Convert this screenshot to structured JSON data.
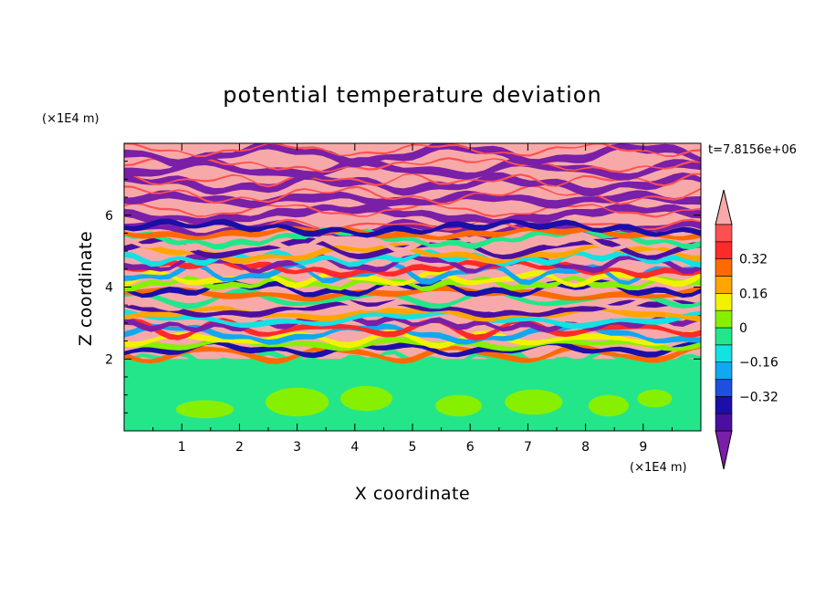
{
  "chart_data": {
    "type": "heatmap",
    "title": "potential temperature deviation",
    "xlabel": "X coordinate",
    "ylabel": "Z coordinate",
    "x_unit": "(×1E4 m)",
    "y_unit": "(×1E4 m)",
    "time_label": "t=7.8156e+06",
    "xlim": [
      0,
      10
    ],
    "ylim": [
      0,
      8
    ],
    "x_ticks": [
      "1",
      "2",
      "3",
      "4",
      "5",
      "6",
      "7",
      "8",
      "9"
    ],
    "y_ticks": [
      "2",
      "4",
      "6"
    ],
    "colorbar": {
      "levels": [
        -0.48,
        -0.4,
        -0.32,
        -0.24,
        -0.16,
        -0.08,
        0,
        0.08,
        0.16,
        0.24,
        0.32,
        0.4,
        0.48
      ],
      "colors": [
        "#7a1fa8",
        "#4b0fa0",
        "#1c0ea8",
        "#1d4fe0",
        "#10a8f0",
        "#12e2e2",
        "#23e68a",
        "#86f000",
        "#f2f200",
        "#ffa500",
        "#ff6a00",
        "#ff2a2a",
        "#ff5050",
        "#f7a9a9"
      ],
      "labels": [
        "0.32",
        "0.16",
        "0",
        "−0.16",
        "−0.32"
      ],
      "label_values": [
        0.32,
        0.16,
        0,
        -0.16,
        -0.32
      ],
      "extend": "both"
    },
    "field_regions": {
      "lower_layer": {
        "z_range": [
          0,
          2
        ],
        "dominant_values": [
          -0.05,
          0.05
        ]
      },
      "mixing_layer": {
        "z_range": [
          2,
          5.6
        ],
        "dominant_values": [
          -0.48,
          0.48
        ]
      },
      "upper_layer": {
        "z_range": [
          5.6,
          8
        ],
        "dominant_values": [
          -0.48,
          0.48
        ]
      }
    }
  }
}
